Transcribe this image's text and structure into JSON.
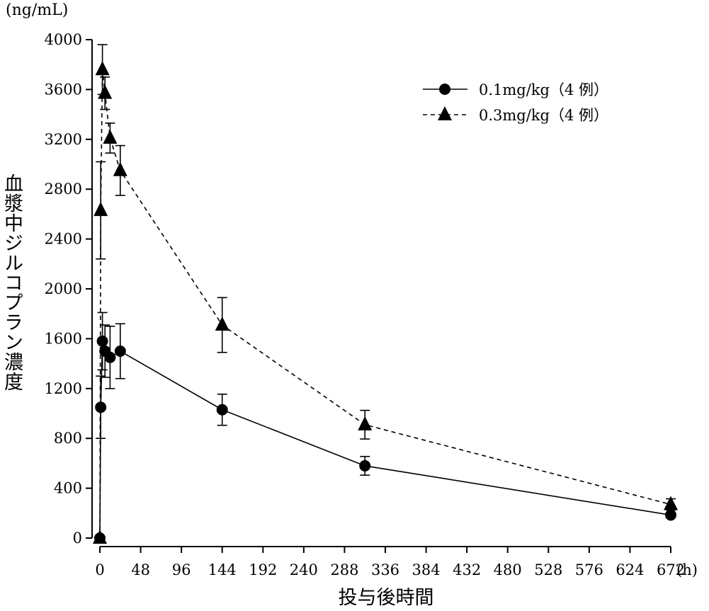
{
  "chart_data": {
    "type": "line",
    "title": "",
    "unit_label": "(ng/mL)",
    "ylabel": "血漿中ジルコプラン濃度",
    "xlabel": "投与後時間",
    "x_unit": "(h)",
    "xlim": [
      0,
      672
    ],
    "ylim": [
      0,
      4000
    ],
    "x_ticks": [
      0,
      48,
      96,
      144,
      192,
      240,
      288,
      336,
      384,
      432,
      480,
      528,
      576,
      624,
      672
    ],
    "y_ticks": [
      0,
      400,
      800,
      1200,
      1600,
      2000,
      2400,
      2800,
      3200,
      3600,
      4000
    ],
    "legend_position": "top-right",
    "grid": false,
    "series": [
      {
        "name": "0.1mg/kg（4 例）",
        "marker": "circle",
        "line_style": "solid",
        "x": [
          0,
          1,
          3,
          6,
          12,
          24,
          144,
          312,
          672
        ],
        "y": [
          0,
          1050,
          1580,
          1500,
          1450,
          1500,
          1030,
          580,
          185
        ],
        "err": [
          0,
          250,
          230,
          210,
          250,
          220,
          125,
          75,
          20
        ]
      },
      {
        "name": "0.3mg/kg（4 例）",
        "marker": "triangle",
        "line_style": "dashed",
        "x": [
          0,
          1,
          3,
          6,
          12,
          24,
          144,
          312,
          672
        ],
        "y": [
          0,
          2630,
          3760,
          3570,
          3210,
          2950,
          1710,
          910,
          270
        ],
        "err": [
          0,
          390,
          200,
          130,
          120,
          200,
          220,
          115,
          45
        ]
      }
    ]
  }
}
